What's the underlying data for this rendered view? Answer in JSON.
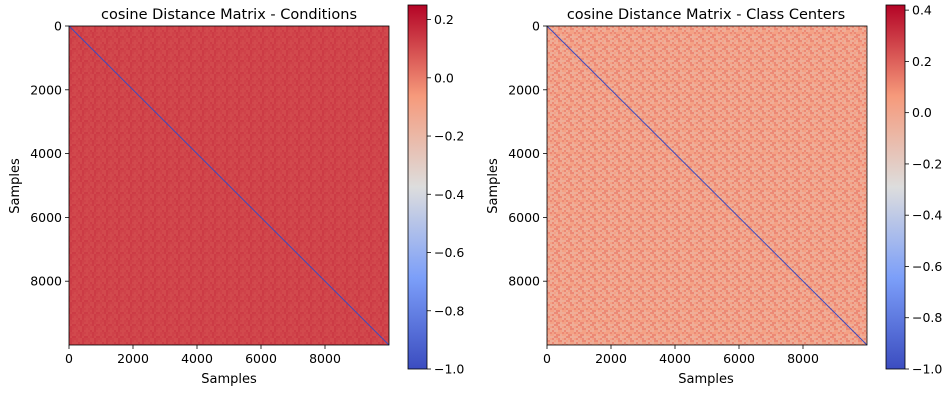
{
  "chart_data": [
    {
      "type": "heatmap",
      "title": "cosine Distance Matrix - Conditions",
      "xlabel": "Samples",
      "ylabel": "Samples",
      "x_range": [
        0,
        10000
      ],
      "y_range": [
        0,
        10000
      ],
      "y_inverted": true,
      "xticks": [
        0,
        2000,
        4000,
        6000,
        8000
      ],
      "yticks": [
        0,
        2000,
        4000,
        6000,
        8000
      ],
      "xtick_labels": [
        "0",
        "2000",
        "4000",
        "6000",
        "8000"
      ],
      "ytick_labels": [
        "0",
        "2000",
        "4000",
        "6000",
        "8000"
      ],
      "off_diagonal_value": 0.12,
      "off_diagonal_spread": 0.04,
      "diagonal_value": -1.0,
      "colorbar": {
        "colormap": "coolwarm",
        "vmin": -1.0,
        "vmax": 0.25,
        "ticks": [
          0.2,
          0.0,
          -0.2,
          -0.4,
          -0.6,
          -0.8,
          -1.0
        ],
        "tick_labels": [
          "0.2",
          "0.0",
          "−0.2",
          "−0.4",
          "−0.6",
          "−0.8",
          "−1.0"
        ]
      }
    },
    {
      "type": "heatmap",
      "title": "cosine Distance Matrix - Class Centers",
      "xlabel": "Samples",
      "ylabel": "Samples",
      "x_range": [
        0,
        10000
      ],
      "y_range": [
        0,
        10000
      ],
      "y_inverted": true,
      "xticks": [
        0,
        2000,
        4000,
        6000,
        8000
      ],
      "yticks": [
        0,
        2000,
        4000,
        6000,
        8000
      ],
      "xtick_labels": [
        "0",
        "2000",
        "4000",
        "6000",
        "8000"
      ],
      "ytick_labels": [
        "0",
        "2000",
        "4000",
        "6000",
        "8000"
      ],
      "off_diagonal_value": 0.03,
      "off_diagonal_spread": 0.12,
      "diagonal_value": -1.0,
      "colorbar": {
        "colormap": "coolwarm",
        "vmin": -1.0,
        "vmax": 0.42,
        "ticks": [
          0.4,
          0.2,
          0.0,
          -0.2,
          -0.4,
          -0.6,
          -0.8,
          -1.0
        ],
        "tick_labels": [
          "0.4",
          "0.2",
          "0.0",
          "−0.2",
          "−0.4",
          "−0.6",
          "−0.8",
          "−1.0"
        ]
      }
    }
  ]
}
